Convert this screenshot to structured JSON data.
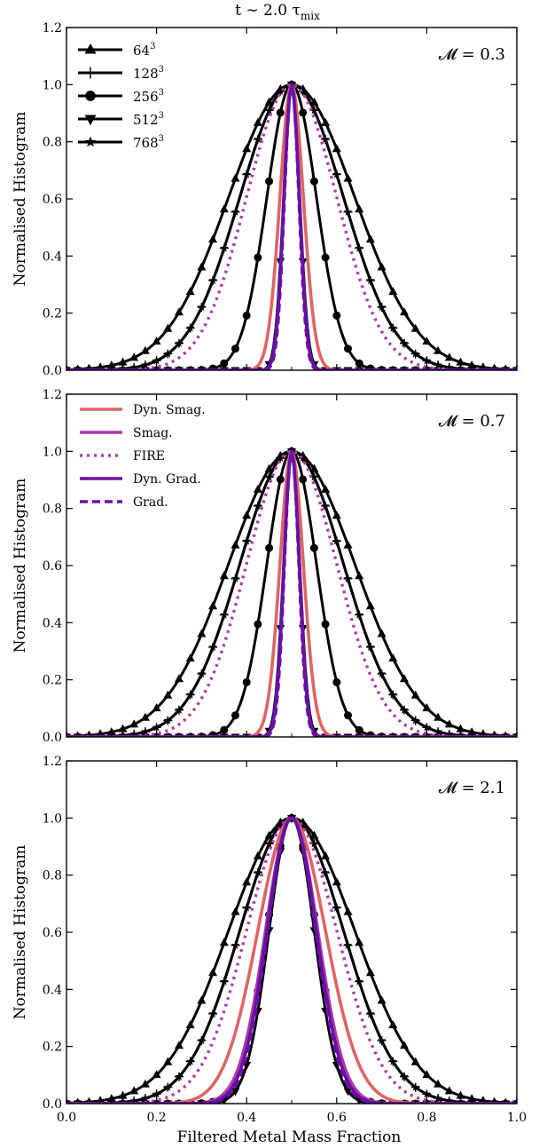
{
  "figure": {
    "title_prefix": "t ∼ 2.0 τ",
    "title_sub": "mix",
    "xlabel": "Filtered Metal Mass Fraction",
    "ylabel": "Normalised Histogram"
  },
  "axes": {
    "xlim": [
      0.0,
      1.0
    ],
    "ylim": [
      0.0,
      1.2
    ],
    "xticks": [
      0.0,
      0.2,
      0.4,
      0.6,
      0.8,
      1.0
    ],
    "yticks": [
      0.0,
      0.2,
      0.4,
      0.6,
      0.8,
      1.0,
      1.2
    ],
    "tick_labels_x": [
      "0.0",
      "0.2",
      "0.4",
      "0.6",
      "0.8",
      "1.0"
    ],
    "tick_labels_y": [
      "0.0",
      "0.2",
      "0.4",
      "0.6",
      "0.8",
      "1.0",
      "1.2"
    ]
  },
  "legend_resolution": [
    {
      "label": "64",
      "sup": "3",
      "marker": "triangle-up"
    },
    {
      "label": "128",
      "sup": "3",
      "marker": "plus"
    },
    {
      "label": "256",
      "sup": "3",
      "marker": "circle"
    },
    {
      "label": "512",
      "sup": "3",
      "marker": "triangle-down"
    },
    {
      "label": "768",
      "sup": "3",
      "marker": "star"
    }
  ],
  "legend_model": [
    {
      "label": "Dyn. Smag.",
      "color": "#e06464",
      "style": "solid"
    },
    {
      "label": "Smag.",
      "color": "#b03aa6",
      "style": "solid"
    },
    {
      "label": "FIRE",
      "color": "#b03aa6",
      "style": "dotted"
    },
    {
      "label": "Dyn. Grad.",
      "color": "#6a0fa8",
      "style": "solid"
    },
    {
      "label": "Grad.",
      "color": "#6a0fa8",
      "style": "dashed"
    }
  ],
  "chart_data": [
    {
      "type": "line",
      "panel_label": "𝓜 = 0.3",
      "x_center": 0.5,
      "series": [
        {
          "name": "64³",
          "sigma": 0.14,
          "color": "#000000",
          "marker": "triangle-up"
        },
        {
          "name": "128³",
          "sigma": 0.115,
          "color": "#000000",
          "marker": "plus"
        },
        {
          "name": "256³",
          "sigma": 0.055,
          "color": "#000000",
          "marker": "circle"
        },
        {
          "name": "512³",
          "sigma": 0.018,
          "color": "#000000",
          "marker": "triangle-down"
        },
        {
          "name": "768³",
          "sigma": 0.115,
          "color": "#000000",
          "marker": "star"
        },
        {
          "name": "Dyn. Smag.",
          "sigma": 0.026,
          "color": "#e06464",
          "style": "solid"
        },
        {
          "name": "Smag.",
          "sigma": 0.017,
          "color": "#b03aa6",
          "style": "solid"
        },
        {
          "name": "FIRE",
          "sigma": 0.1,
          "color": "#b03aa6",
          "style": "dotted"
        },
        {
          "name": "Dyn. Grad.",
          "sigma": 0.017,
          "color": "#6a0fa8",
          "style": "solid"
        },
        {
          "name": "Grad.",
          "sigma": 0.016,
          "color": "#6a0fa8",
          "style": "dashed"
        }
      ]
    },
    {
      "type": "line",
      "panel_label": "𝓜 = 0.7",
      "x_center": 0.5,
      "series": [
        {
          "name": "64³",
          "sigma": 0.14,
          "color": "#000000",
          "marker": "triangle-up"
        },
        {
          "name": "128³",
          "sigma": 0.115,
          "color": "#000000",
          "marker": "plus"
        },
        {
          "name": "256³",
          "sigma": 0.055,
          "color": "#000000",
          "marker": "circle"
        },
        {
          "name": "512³",
          "sigma": 0.018,
          "color": "#000000",
          "marker": "triangle-down"
        },
        {
          "name": "768³",
          "sigma": 0.115,
          "color": "#000000",
          "marker": "star"
        },
        {
          "name": "Dyn. Smag.",
          "sigma": 0.026,
          "color": "#e06464",
          "style": "solid"
        },
        {
          "name": "Smag.",
          "sigma": 0.017,
          "color": "#b03aa6",
          "style": "solid"
        },
        {
          "name": "FIRE",
          "sigma": 0.1,
          "color": "#b03aa6",
          "style": "dotted"
        },
        {
          "name": "Dyn. Grad.",
          "sigma": 0.017,
          "color": "#6a0fa8",
          "style": "solid"
        },
        {
          "name": "Grad.",
          "sigma": 0.016,
          "color": "#6a0fa8",
          "style": "dashed"
        }
      ]
    },
    {
      "type": "line",
      "panel_label": "𝓜 = 2.1",
      "x_center": 0.5,
      "series": [
        {
          "name": "64³",
          "sigma": 0.14,
          "color": "#000000",
          "marker": "triangle-up"
        },
        {
          "name": "128³",
          "sigma": 0.115,
          "color": "#000000",
          "marker": "plus"
        },
        {
          "name": "256³",
          "sigma": 0.055,
          "color": "#000000",
          "marker": "circle"
        },
        {
          "name": "512³",
          "sigma": 0.05,
          "color": "#000000",
          "marker": "triangle-down"
        },
        {
          "name": "768³",
          "sigma": 0.115,
          "color": "#000000",
          "marker": "star"
        },
        {
          "name": "Dyn. Smag.",
          "sigma": 0.075,
          "color": "#e06464",
          "style": "solid"
        },
        {
          "name": "Smag.",
          "sigma": 0.058,
          "color": "#b03aa6",
          "style": "solid"
        },
        {
          "name": "FIRE",
          "sigma": 0.1,
          "color": "#b03aa6",
          "style": "dotted"
        },
        {
          "name": "Dyn. Grad.",
          "sigma": 0.055,
          "color": "#6a0fa8",
          "style": "solid"
        },
        {
          "name": "Grad.",
          "sigma": 0.053,
          "color": "#6a0fa8",
          "style": "dashed"
        }
      ]
    }
  ]
}
